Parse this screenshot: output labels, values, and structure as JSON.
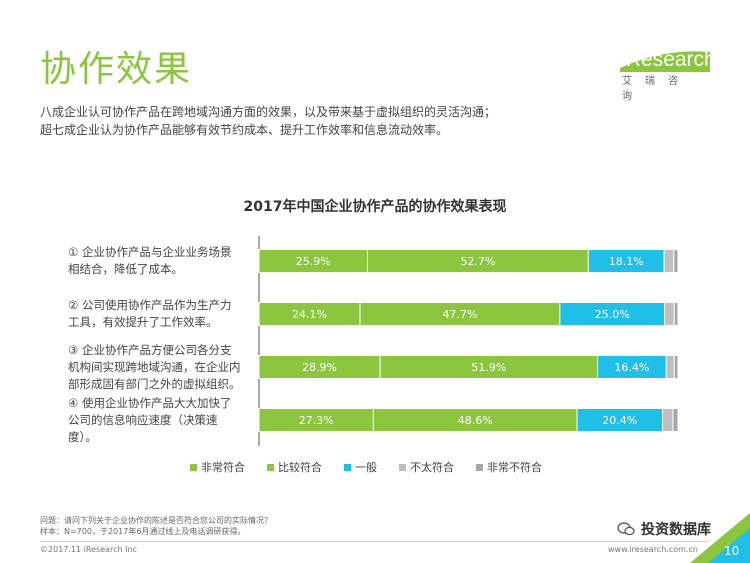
{
  "page": {
    "title": "协作效果",
    "intro_line1": "八成企业认可协作产品在跨地域沟通方面的效果，以及带来基于虚拟组织的灵活沟通；",
    "intro_line2": "超七成企业认为协作产品能够有效节约成本、提升工作效率和信息流动效率。",
    "page_number": "10"
  },
  "logo": {
    "accent": "i",
    "word": "Research",
    "sub": "艾瑞咨询"
  },
  "footnote": {
    "line1": "问题：请问下列关于企业协作的陈述是否符合您公司的实际情况？",
    "line2": "样本：N=700，于2017年6月通过线上及电话调研获得。"
  },
  "footer": {
    "copyright": "©2017.11 iResearch Inc",
    "site": "www.iresearch.com.cn",
    "watermark": "投资数据库"
  },
  "category_lines": [
    [
      "① 企业协作产品与企业业务场景",
      "相结合，降低了成本。"
    ],
    [
      "② 公司使用协作产品作为生产力",
      "工具，有效提升了工作效率。"
    ],
    [
      "③ 企业协作产品方便公司各分支",
      "机构间实现跨地域沟通，在企业内",
      "部形成固有部门之外的虚拟组织。"
    ],
    [
      "④ 使用企业协作产品大大加快了",
      "公司的信息响应速度（决策速",
      "度）。"
    ]
  ],
  "chart_data": {
    "type": "bar",
    "orientation": "horizontal",
    "stacked": true,
    "normalized": true,
    "title": "2017年中国企业协作产品的协作效果表现",
    "categories": [
      "① 企业协作产品与企业业务场景相结合，降低了成本。",
      "② 公司使用协作产品作为生产力工具，有效提升了工作效率。",
      "③ 企业协作产品方便公司各分支机构间实现跨地域沟通，在企业内部形成固有部门之外的虚拟组织。",
      "④ 使用企业协作产品大大加快了公司的信息响应速度（决策速度）。"
    ],
    "series": [
      {
        "name": "非常符合",
        "color": "#8cc63f",
        "values": [
          25.9,
          24.1,
          28.9,
          27.3
        ],
        "labels": [
          "25.9%",
          "24.1%",
          "28.9%",
          "27.3%"
        ]
      },
      {
        "name": "比较符合",
        "color": "#8cc63f",
        "values": [
          52.7,
          47.7,
          51.9,
          48.6
        ],
        "labels": [
          "52.7%",
          "47.7%",
          "51.9%",
          "48.6%"
        ]
      },
      {
        "name": "一般",
        "color": "#1fbfe8",
        "values": [
          18.1,
          25.0,
          16.4,
          20.4
        ],
        "labels": [
          "18.1%",
          "25.0%",
          "16.4%",
          "20.4%"
        ]
      },
      {
        "name": "不太符合",
        "color": "#bfbfbf",
        "values": [
          2.3,
          2.3,
          1.9,
          2.5
        ],
        "labels": []
      },
      {
        "name": "非常不符合",
        "color": "#a6a6a6",
        "values": [
          1.0,
          0.9,
          0.9,
          1.2
        ],
        "labels": []
      }
    ],
    "xlim": [
      0,
      100
    ],
    "grid": false,
    "legend_position": "bottom"
  },
  "colors": {
    "brand_green": "#8cc63f",
    "blue": "#1fbfe8",
    "gray_light": "#bfbfbf",
    "gray_dark": "#a6a6a6"
  }
}
